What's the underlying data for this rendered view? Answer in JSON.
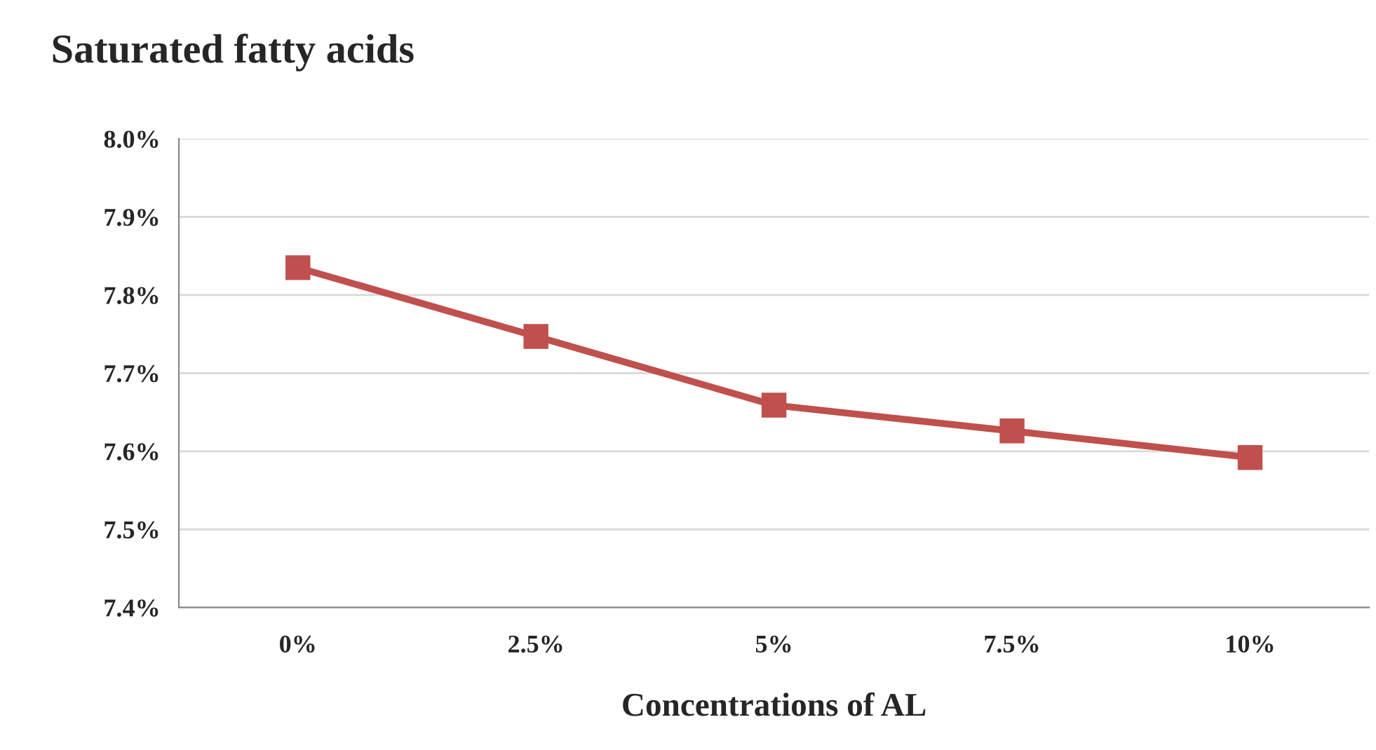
{
  "chart_data": {
    "type": "line",
    "title": "Saturated fatty acids",
    "xlabel": "Concentrations of AL",
    "categories": [
      "0%",
      "2.5%",
      "5%",
      "7.5%",
      "10%"
    ],
    "series": [
      {
        "color": "#c0504d",
        "values": [
          7.835,
          7.747,
          7.659,
          7.626,
          7.592
        ]
      }
    ],
    "ylim": [
      7.4,
      8.0
    ],
    "yticks": [
      {
        "value": 7.4,
        "label": "7.4%"
      },
      {
        "value": 7.5,
        "label": "7.5%"
      },
      {
        "value": 7.6,
        "label": "7.6%"
      },
      {
        "value": 7.7,
        "label": "7.7%"
      },
      {
        "value": 7.8,
        "label": "7.8%"
      },
      {
        "value": 7.9,
        "label": "7.9%"
      },
      {
        "value": 8.0,
        "label": "8.0%"
      }
    ],
    "grid": "y",
    "marker": "square",
    "line_style": "solid",
    "legend": false
  }
}
